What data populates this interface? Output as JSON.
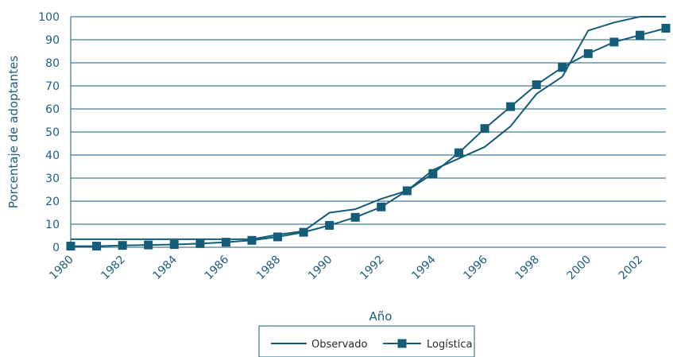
{
  "colors": {
    "series": "#145c78",
    "grid": "#145c78",
    "text": "#1f5f7a",
    "legend_border": "#145c78"
  },
  "chart_data": {
    "type": "line",
    "xlabel": "Año",
    "ylabel": "Porcentaje de adoptantes",
    "xlim": [
      1980,
      2003
    ],
    "ylim": [
      0,
      100
    ],
    "x_ticks": [
      "1980",
      "1982",
      "1984",
      "1986",
      "1988",
      "1990",
      "1992",
      "1994",
      "1996",
      "1998",
      "2000",
      "2002"
    ],
    "y_ticks": [
      "0",
      "10",
      "20",
      "30",
      "40",
      "50",
      "60",
      "70",
      "80",
      "90",
      "100"
    ],
    "grid": "horizontal",
    "legend_position": "bottom-center",
    "x": [
      1980,
      1981,
      1982,
      1983,
      1984,
      1985,
      1986,
      1987,
      1988,
      1989,
      1990,
      1991,
      1992,
      1993,
      1994,
      1995,
      1996,
      1997,
      1998,
      1999,
      2000,
      2001,
      2002,
      2003
    ],
    "series": [
      {
        "name": "Observado",
        "marker": "none",
        "values": [
          3.5,
          3.5,
          3.5,
          3.5,
          3.5,
          3.5,
          3.5,
          3.5,
          5.5,
          7.0,
          15.0,
          16.5,
          21.0,
          24.5,
          33.5,
          38.5,
          43.5,
          52.5,
          66.5,
          74.0,
          94.0,
          97.5,
          100.0,
          100.0
        ]
      },
      {
        "name": "Logística",
        "marker": "square",
        "values": [
          0.5,
          0.5,
          0.8,
          1.0,
          1.2,
          1.6,
          2.2,
          3.0,
          4.5,
          6.5,
          9.5,
          13.0,
          17.5,
          24.5,
          32.0,
          41.0,
          51.5,
          61.0,
          70.5,
          78.0,
          84.0,
          89.0,
          92.0,
          95.0
        ]
      }
    ]
  }
}
